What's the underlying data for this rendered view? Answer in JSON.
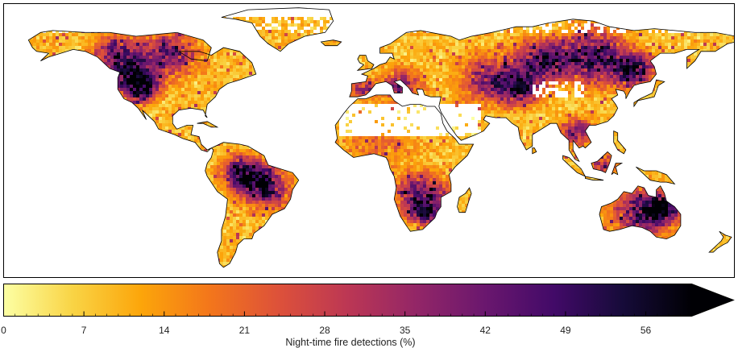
{
  "map": {
    "projection": "plate-carree",
    "extent": {
      "lon": [
        -180,
        180
      ],
      "lat": [
        -60,
        85
      ]
    },
    "variable": "night-time fire detections percentage",
    "hotspots": [
      {
        "region": "western North America",
        "level": 0.75
      },
      {
        "region": "boreal Canada",
        "level": 0.55
      },
      {
        "region": "Siberia",
        "level": 0.7
      },
      {
        "region": "central Asia",
        "level": 0.55
      },
      {
        "region": "Amazon / Brazil",
        "level": 0.7
      },
      {
        "region": "southern Africa",
        "level": 0.6
      },
      {
        "region": "Australia",
        "level": 0.65
      },
      {
        "region": "Mediterranean",
        "level": 0.45
      },
      {
        "region": "Southeast Asia",
        "level": 0.5
      },
      {
        "region": "Sahel",
        "level": 0.2
      }
    ]
  },
  "colorbar": {
    "label": "Night-time fire detections (%)",
    "min": 0,
    "max": 60,
    "extend": "max",
    "ticks": [
      "0",
      "7",
      "14",
      "21",
      "28",
      "35",
      "42",
      "49",
      "56"
    ],
    "tick_values": [
      0,
      7,
      14,
      21,
      28,
      35,
      42,
      49,
      56
    ],
    "colormap": "inferno_r",
    "stops": [
      "#fcffa4",
      "#f9d445",
      "#fca50a",
      "#f3761b",
      "#dd513a",
      "#bc3754",
      "#932667",
      "#6a176e",
      "#420a68",
      "#160b39",
      "#000004"
    ]
  }
}
